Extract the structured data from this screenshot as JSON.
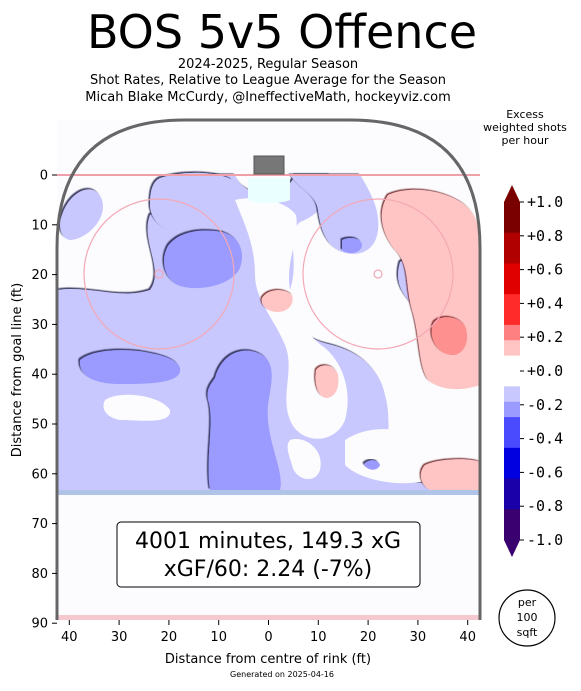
{
  "header": {
    "title": "BOS 5v5 Offence",
    "subtitle_1": "2024-2025, Regular Season",
    "subtitle_2": "Shot Rates, Relative to League Average for the Season",
    "subtitle_3": "Micah Blake McCurdy, @IneffectiveMath, hockeyviz.com"
  },
  "colorbar": {
    "title_1": "Excess",
    "title_2": "weighted shots",
    "title_3": "per hour",
    "ticks": [
      "+1.0",
      "+0.8",
      "+0.6",
      "+0.4",
      "+0.2",
      "+0.0",
      "-0.2",
      "-0.4",
      "-0.6",
      "-0.8",
      "-1.0"
    ]
  },
  "summary": {
    "line_1": "4001 minutes, 149.3 xG",
    "line_2": "xGF/60: 2.24 (-7%)"
  },
  "badge": {
    "line_1": "per",
    "line_2": "100",
    "line_3": "sqft"
  },
  "footer": {
    "generated": "Generated on 2025-04-16"
  },
  "chart_data": {
    "type": "heatmap",
    "xlabel": "Distance from centre of rink (ft)",
    "ylabel": "Distance from goal line (ft)",
    "x_ticks": [
      "40",
      "30",
      "20",
      "10",
      "0",
      "10",
      "20",
      "30",
      "40"
    ],
    "y_ticks": [
      "0",
      "10",
      "20",
      "30",
      "40",
      "50",
      "60",
      "70",
      "80",
      "90"
    ],
    "xlim": [
      -42.5,
      42.5
    ],
    "ylim": [
      -11,
      90
    ],
    "y_axis_inverted": true,
    "colorscale": {
      "min": -1.0,
      "max": 1.0,
      "colors": {
        "plus_1_0": "#7a0000",
        "plus_0_8": "#b00000",
        "plus_0_6": "#e00000",
        "plus_0_4": "#ff2a2a",
        "plus_0_2": "#ff8080",
        "plus_0_1": "#ffc4c4",
        "zero": "#ffffff",
        "minus_0_1": "#c8c8ff",
        "minus_0_2": "#9a9aff",
        "minus_0_4": "#4a4aff",
        "minus_0_6": "#0000e0",
        "minus_0_8": "#1a00a8",
        "minus_1_0": "#3a0070"
      }
    },
    "regions": [
      {
        "label": "blue band behind net and slot",
        "sign": "negative",
        "level": -0.1
      },
      {
        "label": "high slot left",
        "sign": "negative",
        "level": -0.2
      },
      {
        "label": "left point",
        "sign": "negative",
        "level": -0.2
      },
      {
        "label": "centre point",
        "sign": "negative",
        "level": -0.2
      },
      {
        "label": "right faceoff circle",
        "sign": "positive",
        "level": 0.1
      },
      {
        "label": "right boards low",
        "sign": "positive",
        "level": 0.2
      },
      {
        "label": "right slot spot",
        "sign": "positive",
        "level": 0.1
      },
      {
        "label": "right high spot",
        "sign": "positive",
        "level": 0.1
      }
    ]
  }
}
